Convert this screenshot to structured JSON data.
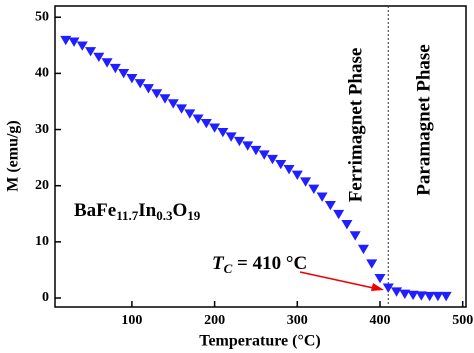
{
  "chart_data": {
    "type": "scatter",
    "x_label": "Temperature (°C)",
    "y_label": "M (emu/g)",
    "x": [
      20,
      30,
      40,
      50,
      60,
      70,
      80,
      90,
      100,
      110,
      120,
      130,
      140,
      150,
      160,
      170,
      180,
      190,
      200,
      210,
      220,
      230,
      240,
      250,
      260,
      270,
      280,
      290,
      300,
      310,
      320,
      330,
      340,
      350,
      360,
      370,
      380,
      390,
      400,
      410,
      420,
      430,
      440,
      450,
      460,
      470,
      480
    ],
    "series": [
      {
        "color": "#1f1fff",
        "values": [
          46.0,
          45.7,
          45.0,
          44.0,
          43.0,
          42.0,
          41.0,
          40.1,
          39.2,
          38.3,
          37.4,
          36.5,
          35.6,
          34.7,
          33.8,
          32.9,
          32.0,
          31.2,
          30.4,
          29.6,
          28.8,
          28.0,
          27.2,
          26.4,
          25.6,
          24.8,
          23.9,
          23.0,
          22.0,
          20.8,
          19.5,
          18.1,
          16.6,
          15.0,
          13.2,
          11.2,
          8.8,
          6.2,
          3.6,
          1.9,
          1.2,
          0.8,
          0.6,
          0.5,
          0.4,
          0.4,
          0.4
        ]
      }
    ],
    "xlim": [
      7,
      504
    ],
    "ylim": [
      -1.6,
      52
    ],
    "xticks": [
      100,
      200,
      300,
      400,
      500
    ],
    "yticks": [
      0,
      10,
      20,
      30,
      40,
      50
    ],
    "tc_line": 410,
    "annotations": {
      "ferri": "Ferrimagnet Phase",
      "para": "Paramagnet Phase",
      "sample": [
        "BaFe",
        "11.7",
        "In",
        "0.3",
        "O",
        "19"
      ],
      "tc": [
        "T",
        "C",
        " = 410 °C"
      ]
    }
  }
}
